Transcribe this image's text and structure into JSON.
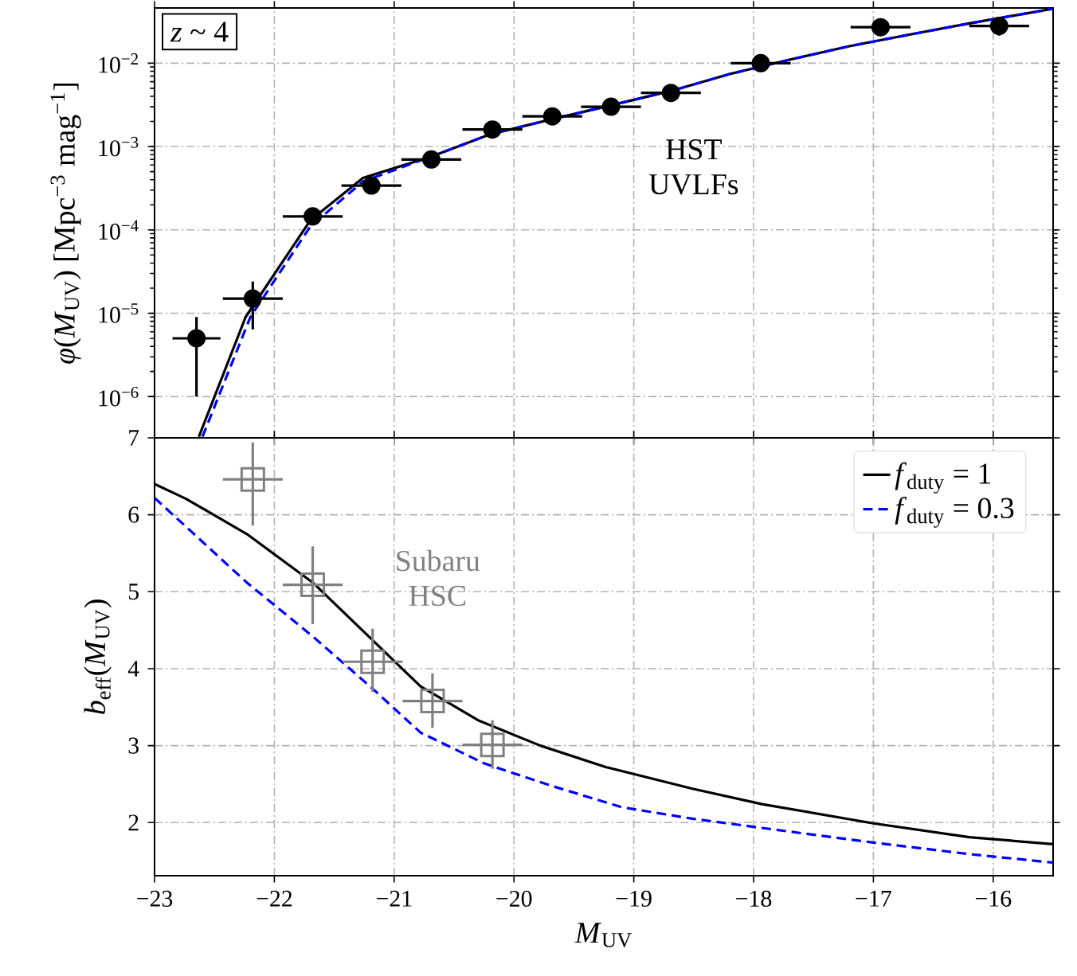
{
  "chart_data": [
    {
      "type": "line",
      "log": "y",
      "grid": true,
      "ylabel": "*φ*(*M*$_{UV}$) [Mpc$^{−3}$ mag$^{−1}$]",
      "annotations": [
        "*z* ~ 4",
        "HST UVLFs"
      ],
      "xlim": [
        -23,
        -15.5
      ],
      "xticks": [
        -23,
        -22,
        -21,
        -20,
        -19,
        -18,
        -17,
        -16
      ],
      "tick_labels": "y",
      "ylim": [
        3.2e-07,
        0.046
      ],
      "yticks": [
        {
          "value": 1e-06,
          "label": "10$^{−6}$"
        },
        {
          "value": 1e-05,
          "label": "10$^{−5}$"
        },
        {
          "value": 0.0001,
          "label": "10$^{−4}$"
        },
        {
          "value": 0.001,
          "label": "10$^{−3}$"
        },
        {
          "value": 0.01,
          "label": "10$^{−2}$"
        }
      ],
      "series": [
        {
          "color": "#000000",
          "line_style": "solid",
          "x": [
            -22.63,
            -22.24,
            -21.7,
            -21.26,
            -20.7,
            -20.2,
            -19.7,
            -19.2,
            -18.7,
            -18.2,
            -17.7,
            -17.2,
            -16.7,
            -16.2,
            -15.5
          ],
          "values": [
            3.3e-07,
            9e-06,
            0.00013,
            0.00042,
            0.00075,
            0.0014,
            0.0021,
            0.0031,
            0.0046,
            0.0074,
            0.011,
            0.016,
            0.022,
            0.03,
            0.045
          ]
        },
        {
          "color": "#0000ff",
          "line_style": "dashed",
          "x": [
            -22.6,
            -22.2,
            -21.7,
            -21.26,
            -20.7,
            -20.2,
            -19.7,
            -19.2,
            -18.7,
            -18.2,
            -17.7,
            -17.2,
            -16.7,
            -16.2,
            -15.5
          ],
          "values": [
            3.3e-07,
            9e-06,
            0.00011,
            0.00038,
            0.00075,
            0.0014,
            0.0021,
            0.0031,
            0.0046,
            0.0074,
            0.011,
            0.016,
            0.022,
            0.03,
            0.045
          ]
        },
        {
          "type": "scatter",
          "color": "#000000",
          "marker": "circle",
          "x": [
            -22.65,
            -22.18,
            -21.68,
            -21.19,
            -20.69,
            -20.18,
            -19.68,
            -19.19,
            -18.69,
            -17.94,
            -16.94,
            -15.95
          ],
          "values": [
            5e-06,
            1.5e-05,
            0.000145,
            0.00034,
            0.0007,
            0.0016,
            0.0023,
            0.003,
            0.0044,
            0.01,
            0.027,
            0.028
          ],
          "errors": [
            [
              1e-06,
              9e-06
            ],
            [
              6.4e-06,
              2.4e-05
            ],
            null,
            null,
            null,
            null,
            null,
            null,
            null,
            null,
            null,
            [
              0.0214,
              0.034
            ]
          ],
          "xerrors": [
            0.2,
            0.25,
            0.25,
            0.25,
            0.25,
            0.25,
            0.25,
            0.25,
            0.25,
            0.25,
            0.25,
            0.25
          ]
        }
      ]
    },
    {
      "type": "line",
      "grid": true,
      "legend": "top right",
      "xlabel": "*M*$_{UV}$",
      "ylabel": "*b*$_{eff}$(*M*$_{UV}$)",
      "annotations": [
        "Subaru HSC"
      ],
      "xlim": [
        -23,
        -15.5
      ],
      "xticks": [
        {
          "value": -23,
          "label": "−23"
        },
        {
          "value": -22,
          "label": "−22"
        },
        {
          "value": -21,
          "label": "−21"
        },
        {
          "value": -20,
          "label": "−20"
        },
        {
          "value": -19,
          "label": "−19"
        },
        {
          "value": -18,
          "label": "−18"
        },
        {
          "value": -17,
          "label": "−17"
        },
        {
          "value": -16,
          "label": "−16"
        }
      ],
      "ylim": [
        1.31,
        7
      ],
      "yticks": [
        2,
        3,
        4,
        5,
        6,
        7
      ],
      "series": [
        {
          "name": "*f*$_{duty}$ = 1",
          "color": "#000000",
          "line_style": "solid",
          "x": [
            -23,
            -22.74,
            -22.23,
            -21.68,
            -21.18,
            -20.78,
            -20.3,
            -19.78,
            -19.23,
            -18.51,
            -17.93,
            -17.0,
            -16.2,
            -15.5
          ],
          "values": [
            6.4,
            6.21,
            5.75,
            5.12,
            4.37,
            3.77,
            3.33,
            3.0,
            2.72,
            2.44,
            2.24,
            1.99,
            1.81,
            1.72
          ]
        },
        {
          "name": "*f*$_{duty}$ = 0.3",
          "color": "#0000ff",
          "line_style": "dashed",
          "x": [
            -23,
            -22.23,
            -21.68,
            -21.18,
            -20.78,
            -20.25,
            -19.67,
            -19.1,
            -18.51,
            -17.93,
            -17.0,
            -16.2,
            -15.5
          ],
          "values": [
            6.22,
            5.12,
            4.42,
            3.74,
            3.17,
            2.77,
            2.47,
            2.2,
            2.05,
            1.93,
            1.74,
            1.59,
            1.48
          ]
        },
        {
          "type": "scatter",
          "color": "#808080",
          "marker": "square",
          "x": [
            -22.18,
            -21.68,
            -21.18,
            -20.68,
            -20.18
          ],
          "values": [
            6.46,
            5.09,
            4.09,
            3.58,
            3.01
          ],
          "errors": [
            [
              5.86,
              6.94
            ],
            [
              4.58,
              5.59
            ],
            [
              3.7,
              4.52
            ],
            [
              3.23,
              3.94
            ],
            [
              2.7,
              3.33
            ]
          ],
          "xerrors": [
            0.25,
            0.25,
            0.25,
            0.25,
            0.25
          ]
        }
      ]
    }
  ]
}
